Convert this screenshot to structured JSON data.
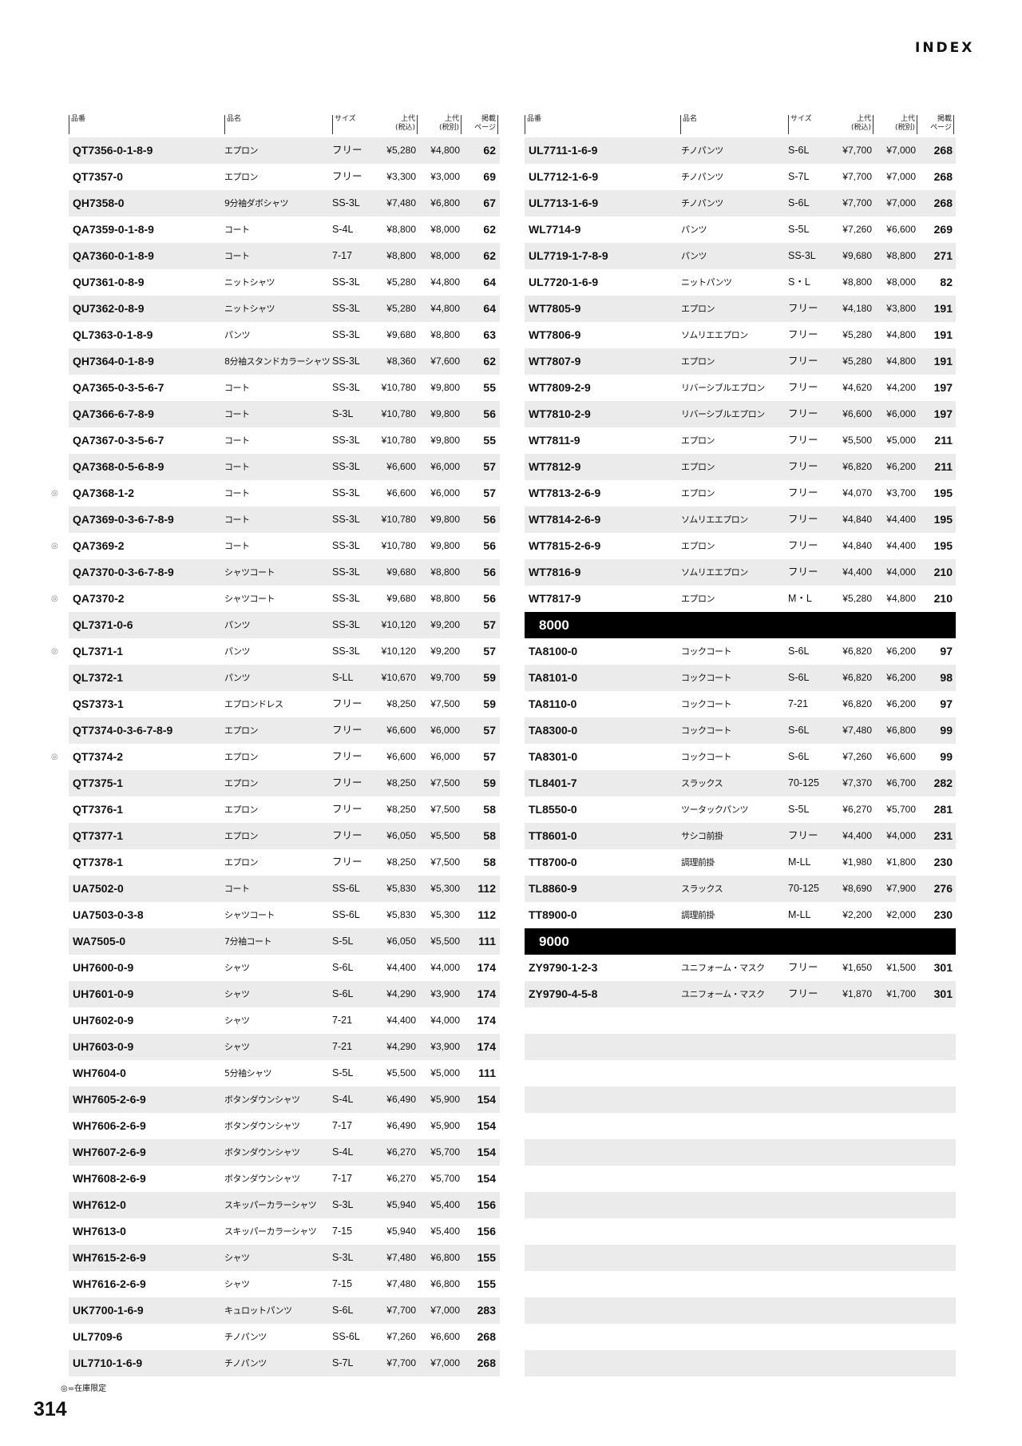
{
  "header": {
    "title": "INDEX"
  },
  "columns": {
    "code": "品番",
    "name": "品名",
    "size": "サイズ",
    "price_incl_1": "上代",
    "price_incl_2": "(税込)",
    "price_excl_1": "上代",
    "price_excl_2": "(税別)",
    "page_1": "掲載",
    "page_2": "ページ"
  },
  "limited_mark": "◎",
  "left": [
    {
      "code": "QT7356-0-1-8-9",
      "name": "エプロン",
      "size": "フリー",
      "price_incl": "¥5,280",
      "price_excl": "¥4,800",
      "page": "62"
    },
    {
      "code": "QT7357-0",
      "name": "エプロン",
      "size": "フリー",
      "price_incl": "¥3,300",
      "price_excl": "¥3,000",
      "page": "69"
    },
    {
      "code": "QH7358-0",
      "name": "9分袖ダボシャツ",
      "size": "SS-3L",
      "price_incl": "¥7,480",
      "price_excl": "¥6,800",
      "page": "67"
    },
    {
      "code": "QA7359-0-1-8-9",
      "name": "コート",
      "size": "S-4L",
      "price_incl": "¥8,800",
      "price_excl": "¥8,000",
      "page": "62"
    },
    {
      "code": "QA7360-0-1-8-9",
      "name": "コート",
      "size": "7-17",
      "price_incl": "¥8,800",
      "price_excl": "¥8,000",
      "page": "62"
    },
    {
      "code": "QU7361-0-8-9",
      "name": "ニットシャツ",
      "size": "SS-3L",
      "price_incl": "¥5,280",
      "price_excl": "¥4,800",
      "page": "64"
    },
    {
      "code": "QU7362-0-8-9",
      "name": "ニットシャツ",
      "size": "SS-3L",
      "price_incl": "¥5,280",
      "price_excl": "¥4,800",
      "page": "64"
    },
    {
      "code": "QL7363-0-1-8-9",
      "name": "パンツ",
      "size": "SS-3L",
      "price_incl": "¥9,680",
      "price_excl": "¥8,800",
      "page": "63"
    },
    {
      "code": "QH7364-0-1-8-9",
      "name": "8分袖スタンドカラーシャツ",
      "size": "SS-3L",
      "price_incl": "¥8,360",
      "price_excl": "¥7,600",
      "page": "62"
    },
    {
      "code": "QA7365-0-3-5-6-7",
      "name": "コート",
      "size": "SS-3L",
      "price_incl": "¥10,780",
      "price_excl": "¥9,800",
      "page": "55"
    },
    {
      "code": "QA7366-6-7-8-9",
      "name": "コート",
      "size": "S-3L",
      "price_incl": "¥10,780",
      "price_excl": "¥9,800",
      "page": "56"
    },
    {
      "code": "QA7367-0-3-5-6-7",
      "name": "コート",
      "size": "SS-3L",
      "price_incl": "¥10,780",
      "price_excl": "¥9,800",
      "page": "55"
    },
    {
      "code": "QA7368-0-5-6-8-9",
      "name": "コート",
      "size": "SS-3L",
      "price_incl": "¥6,600",
      "price_excl": "¥6,000",
      "page": "57"
    },
    {
      "code": "QA7368-1-2",
      "name": "コート",
      "size": "SS-3L",
      "price_incl": "¥6,600",
      "price_excl": "¥6,000",
      "page": "57",
      "limited": true
    },
    {
      "code": "QA7369-0-3-6-7-8-9",
      "name": "コート",
      "size": "SS-3L",
      "price_incl": "¥10,780",
      "price_excl": "¥9,800",
      "page": "56"
    },
    {
      "code": "QA7369-2",
      "name": "コート",
      "size": "SS-3L",
      "price_incl": "¥10,780",
      "price_excl": "¥9,800",
      "page": "56",
      "limited": true
    },
    {
      "code": "QA7370-0-3-6-7-8-9",
      "name": "シャツコート",
      "size": "SS-3L",
      "price_incl": "¥9,680",
      "price_excl": "¥8,800",
      "page": "56"
    },
    {
      "code": "QA7370-2",
      "name": "シャツコート",
      "size": "SS-3L",
      "price_incl": "¥9,680",
      "price_excl": "¥8,800",
      "page": "56",
      "limited": true
    },
    {
      "code": "QL7371-0-6",
      "name": "パンツ",
      "size": "SS-3L",
      "price_incl": "¥10,120",
      "price_excl": "¥9,200",
      "page": "57"
    },
    {
      "code": "QL7371-1",
      "name": "パンツ",
      "size": "SS-3L",
      "price_incl": "¥10,120",
      "price_excl": "¥9,200",
      "page": "57",
      "limited": true
    },
    {
      "code": "QL7372-1",
      "name": "パンツ",
      "size": "S-LL",
      "price_incl": "¥10,670",
      "price_excl": "¥9,700",
      "page": "59"
    },
    {
      "code": "QS7373-1",
      "name": "エプロンドレス",
      "size": "フリー",
      "price_incl": "¥8,250",
      "price_excl": "¥7,500",
      "page": "59"
    },
    {
      "code": "QT7374-0-3-6-7-8-9",
      "name": "エプロン",
      "size": "フリー",
      "price_incl": "¥6,600",
      "price_excl": "¥6,000",
      "page": "57"
    },
    {
      "code": "QT7374-2",
      "name": "エプロン",
      "size": "フリー",
      "price_incl": "¥6,600",
      "price_excl": "¥6,000",
      "page": "57",
      "limited": true
    },
    {
      "code": "QT7375-1",
      "name": "エプロン",
      "size": "フリー",
      "price_incl": "¥8,250",
      "price_excl": "¥7,500",
      "page": "59"
    },
    {
      "code": "QT7376-1",
      "name": "エプロン",
      "size": "フリー",
      "price_incl": "¥8,250",
      "price_excl": "¥7,500",
      "page": "58"
    },
    {
      "code": "QT7377-1",
      "name": "エプロン",
      "size": "フリー",
      "price_incl": "¥6,050",
      "price_excl": "¥5,500",
      "page": "58"
    },
    {
      "code": "QT7378-1",
      "name": "エプロン",
      "size": "フリー",
      "price_incl": "¥8,250",
      "price_excl": "¥7,500",
      "page": "58"
    },
    {
      "code": "UA7502-0",
      "name": "コート",
      "size": "SS-6L",
      "price_incl": "¥5,830",
      "price_excl": "¥5,300",
      "page": "112"
    },
    {
      "code": "UA7503-0-3-8",
      "name": "シャツコート",
      "size": "SS-6L",
      "price_incl": "¥5,830",
      "price_excl": "¥5,300",
      "page": "112"
    },
    {
      "code": "WA7505-0",
      "name": "7分袖コート",
      "size": "S-5L",
      "price_incl": "¥6,050",
      "price_excl": "¥5,500",
      "page": "111"
    },
    {
      "code": "UH7600-0-9",
      "name": "シャツ",
      "size": "S-6L",
      "price_incl": "¥4,400",
      "price_excl": "¥4,000",
      "page": "174"
    },
    {
      "code": "UH7601-0-9",
      "name": "シャツ",
      "size": "S-6L",
      "price_incl": "¥4,290",
      "price_excl": "¥3,900",
      "page": "174"
    },
    {
      "code": "UH7602-0-9",
      "name": "シャツ",
      "size": "7-21",
      "price_incl": "¥4,400",
      "price_excl": "¥4,000",
      "page": "174"
    },
    {
      "code": "UH7603-0-9",
      "name": "シャツ",
      "size": "7-21",
      "price_incl": "¥4,290",
      "price_excl": "¥3,900",
      "page": "174"
    },
    {
      "code": "WH7604-0",
      "name": "5分袖シャツ",
      "size": "S-5L",
      "price_incl": "¥5,500",
      "price_excl": "¥5,000",
      "page": "111"
    },
    {
      "code": "WH7605-2-6-9",
      "name": "ボタンダウンシャツ",
      "size": "S-4L",
      "price_incl": "¥6,490",
      "price_excl": "¥5,900",
      "page": "154"
    },
    {
      "code": "WH7606-2-6-9",
      "name": "ボタンダウンシャツ",
      "size": "7-17",
      "price_incl": "¥6,490",
      "price_excl": "¥5,900",
      "page": "154"
    },
    {
      "code": "WH7607-2-6-9",
      "name": "ボタンダウンシャツ",
      "size": "S-4L",
      "price_incl": "¥6,270",
      "price_excl": "¥5,700",
      "page": "154"
    },
    {
      "code": "WH7608-2-6-9",
      "name": "ボタンダウンシャツ",
      "size": "7-17",
      "price_incl": "¥6,270",
      "price_excl": "¥5,700",
      "page": "154"
    },
    {
      "code": "WH7612-0",
      "name": "スキッパーカラーシャツ",
      "size": "S-3L",
      "price_incl": "¥5,940",
      "price_excl": "¥5,400",
      "page": "156"
    },
    {
      "code": "WH7613-0",
      "name": "スキッパーカラーシャツ",
      "size": "7-15",
      "price_incl": "¥5,940",
      "price_excl": "¥5,400",
      "page": "156"
    },
    {
      "code": "WH7615-2-6-9",
      "name": "シャツ",
      "size": "S-3L",
      "price_incl": "¥7,480",
      "price_excl": "¥6,800",
      "page": "155"
    },
    {
      "code": "WH7616-2-6-9",
      "name": "シャツ",
      "size": "7-15",
      "price_incl": "¥7,480",
      "price_excl": "¥6,800",
      "page": "155"
    },
    {
      "code": "UK7700-1-6-9",
      "name": "キュロットパンツ",
      "size": "S-6L",
      "price_incl": "¥7,700",
      "price_excl": "¥7,000",
      "page": "283"
    },
    {
      "code": "UL7709-6",
      "name": "チノパンツ",
      "size": "SS-6L",
      "price_incl": "¥7,260",
      "price_excl": "¥6,600",
      "page": "268"
    },
    {
      "code": "UL7710-1-6-9",
      "name": "チノパンツ",
      "size": "S-7L",
      "price_incl": "¥7,700",
      "price_excl": "¥7,000",
      "page": "268"
    }
  ],
  "right": [
    {
      "code": "UL7711-1-6-9",
      "name": "チノパンツ",
      "size": "S-6L",
      "price_incl": "¥7,700",
      "price_excl": "¥7,000",
      "page": "268"
    },
    {
      "code": "UL7712-1-6-9",
      "name": "チノパンツ",
      "size": "S-7L",
      "price_incl": "¥7,700",
      "price_excl": "¥7,000",
      "page": "268"
    },
    {
      "code": "UL7713-1-6-9",
      "name": "チノパンツ",
      "size": "S-6L",
      "price_incl": "¥7,700",
      "price_excl": "¥7,000",
      "page": "268"
    },
    {
      "code": "WL7714-9",
      "name": "パンツ",
      "size": "S-5L",
      "price_incl": "¥7,260",
      "price_excl": "¥6,600",
      "page": "269"
    },
    {
      "code": "UL7719-1-7-8-9",
      "name": "パンツ",
      "size": "SS-3L",
      "price_incl": "¥9,680",
      "price_excl": "¥8,800",
      "page": "271"
    },
    {
      "code": "UL7720-1-6-9",
      "name": "ニットパンツ",
      "size": "S・L",
      "price_incl": "¥8,800",
      "price_excl": "¥8,000",
      "page": "82"
    },
    {
      "code": "WT7805-9",
      "name": "エプロン",
      "size": "フリー",
      "price_incl": "¥4,180",
      "price_excl": "¥3,800",
      "page": "191"
    },
    {
      "code": "WT7806-9",
      "name": "ソムリエエプロン",
      "size": "フリー",
      "price_incl": "¥5,280",
      "price_excl": "¥4,800",
      "page": "191"
    },
    {
      "code": "WT7807-9",
      "name": "エプロン",
      "size": "フリー",
      "price_incl": "¥5,280",
      "price_excl": "¥4,800",
      "page": "191"
    },
    {
      "code": "WT7809-2-9",
      "name": "リバーシブルエプロン",
      "size": "フリー",
      "price_incl": "¥4,620",
      "price_excl": "¥4,200",
      "page": "197"
    },
    {
      "code": "WT7810-2-9",
      "name": "リバーシブルエプロン",
      "size": "フリー",
      "price_incl": "¥6,600",
      "price_excl": "¥6,000",
      "page": "197"
    },
    {
      "code": "WT7811-9",
      "name": "エプロン",
      "size": "フリー",
      "price_incl": "¥5,500",
      "price_excl": "¥5,000",
      "page": "211"
    },
    {
      "code": "WT7812-9",
      "name": "エプロン",
      "size": "フリー",
      "price_incl": "¥6,820",
      "price_excl": "¥6,200",
      "page": "211"
    },
    {
      "code": "WT7813-2-6-9",
      "name": "エプロン",
      "size": "フリー",
      "price_incl": "¥4,070",
      "price_excl": "¥3,700",
      "page": "195"
    },
    {
      "code": "WT7814-2-6-9",
      "name": "ソムリエエプロン",
      "size": "フリー",
      "price_incl": "¥4,840",
      "price_excl": "¥4,400",
      "page": "195"
    },
    {
      "code": "WT7815-2-6-9",
      "name": "エプロン",
      "size": "フリー",
      "price_incl": "¥4,840",
      "price_excl": "¥4,400",
      "page": "195"
    },
    {
      "code": "WT7816-9",
      "name": "ソムリエエプロン",
      "size": "フリー",
      "price_incl": "¥4,400",
      "price_excl": "¥4,000",
      "page": "210"
    },
    {
      "code": "WT7817-9",
      "name": "エプロン",
      "size": "M・L",
      "price_incl": "¥5,280",
      "price_excl": "¥4,800",
      "page": "210"
    },
    {
      "section": "8000"
    },
    {
      "code": "TA8100-0",
      "name": "コックコート",
      "size": "S-6L",
      "price_incl": "¥6,820",
      "price_excl": "¥6,200",
      "page": "97"
    },
    {
      "code": "TA8101-0",
      "name": "コックコート",
      "size": "S-6L",
      "price_incl": "¥6,820",
      "price_excl": "¥6,200",
      "page": "98"
    },
    {
      "code": "TA8110-0",
      "name": "コックコート",
      "size": "7-21",
      "price_incl": "¥6,820",
      "price_excl": "¥6,200",
      "page": "97"
    },
    {
      "code": "TA8300-0",
      "name": "コックコート",
      "size": "S-6L",
      "price_incl": "¥7,480",
      "price_excl": "¥6,800",
      "page": "99"
    },
    {
      "code": "TA8301-0",
      "name": "コックコート",
      "size": "S-6L",
      "price_incl": "¥7,260",
      "price_excl": "¥6,600",
      "page": "99"
    },
    {
      "code": "TL8401-7",
      "name": "スラックス",
      "size": "70-125",
      "price_incl": "¥7,370",
      "price_excl": "¥6,700",
      "page": "282"
    },
    {
      "code": "TL8550-0",
      "name": "ツータックパンツ",
      "size": "S-5L",
      "price_incl": "¥6,270",
      "price_excl": "¥5,700",
      "page": "281"
    },
    {
      "code": "TT8601-0",
      "name": "サシコ前掛",
      "size": "フリー",
      "price_incl": "¥4,400",
      "price_excl": "¥4,000",
      "page": "231"
    },
    {
      "code": "TT8700-0",
      "name": "調理前掛",
      "size": "M-LL",
      "price_incl": "¥1,980",
      "price_excl": "¥1,800",
      "page": "230"
    },
    {
      "code": "TL8860-9",
      "name": "スラックス",
      "size": "70-125",
      "price_incl": "¥8,690",
      "price_excl": "¥7,900",
      "page": "276"
    },
    {
      "code": "TT8900-0",
      "name": "調理前掛",
      "size": "M-LL",
      "price_incl": "¥2,200",
      "price_excl": "¥2,000",
      "page": "230"
    },
    {
      "section": "9000"
    },
    {
      "code": "ZY9790-1-2-3",
      "name": "ユニフォーム・マスク",
      "size": "フリー",
      "price_incl": "¥1,650",
      "price_excl": "¥1,500",
      "page": "301"
    },
    {
      "code": "ZY9790-4-5-8",
      "name": "ユニフォーム・マスク",
      "size": "フリー",
      "price_incl": "¥1,870",
      "price_excl": "¥1,700",
      "page": "301"
    }
  ],
  "footer": {
    "note": "◎=在庫限定",
    "page_number": "314"
  },
  "colors": {
    "row_shade": "#ebebeb",
    "section_bg": "#000000",
    "section_text": "#ffffff"
  }
}
